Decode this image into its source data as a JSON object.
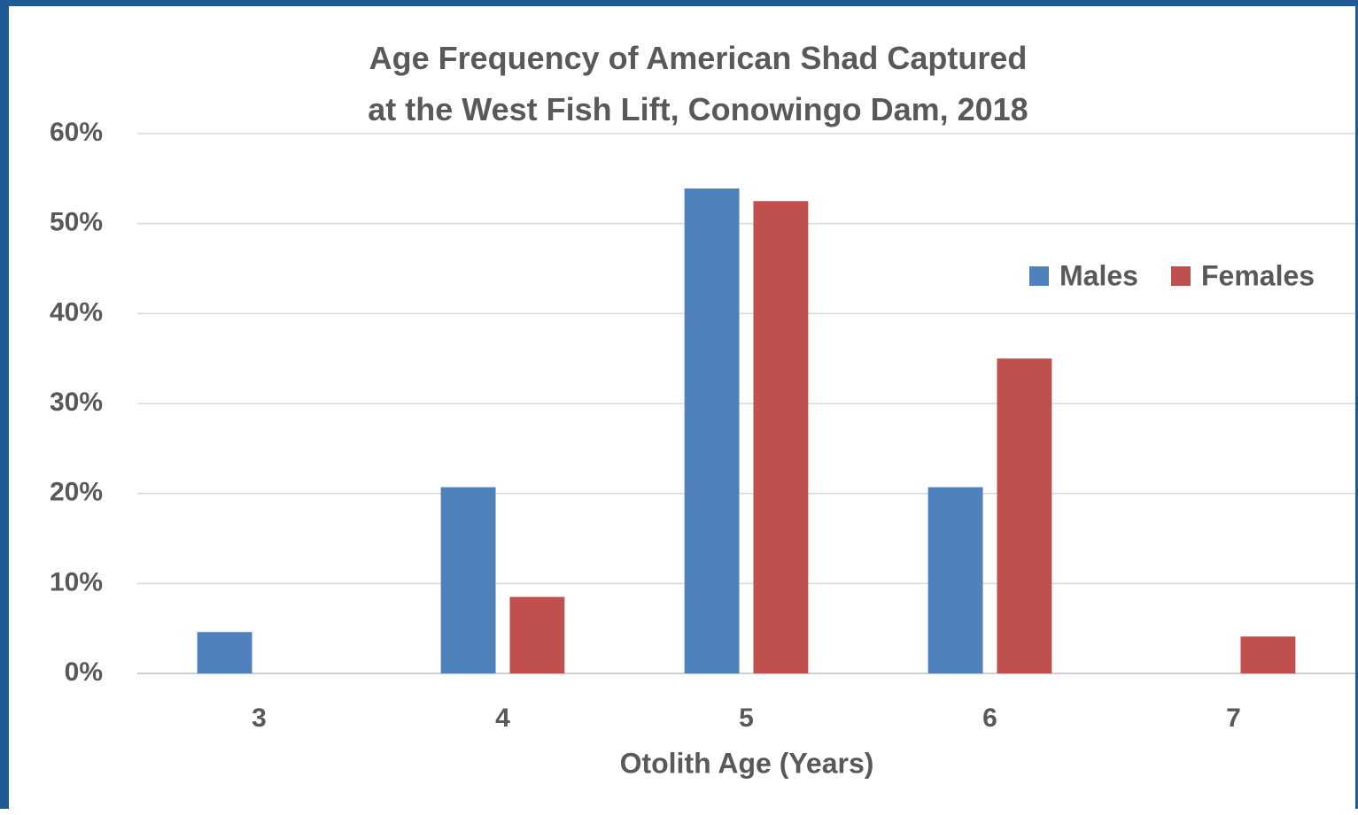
{
  "chart_data": {
    "type": "bar",
    "title": "Age Frequency of American Shad Captured at the West Fish Lift, Conowingo Dam, 2018",
    "x_label": "Otolith Age (Years)",
    "categories": [
      "3",
      "4",
      "5",
      "6",
      "7"
    ],
    "series": [
      {
        "name": "Males",
        "color": "#4f81bd",
        "values": [
          4.6,
          20.7,
          53.9,
          20.7,
          0
        ]
      },
      {
        "name": "Females",
        "color": "#c0504d",
        "values": [
          0,
          8.5,
          52.5,
          35.0,
          4.1
        ]
      }
    ],
    "ylim": [
      0,
      60
    ],
    "yticks": [
      {
        "value": 0,
        "label": "0%"
      },
      {
        "value": 10,
        "label": "10%"
      },
      {
        "value": 20,
        "label": "20%"
      },
      {
        "value": 30,
        "label": "30%"
      },
      {
        "value": 40,
        "label": "40%"
      },
      {
        "value": 50,
        "label": "50%"
      },
      {
        "value": 60,
        "label": "60%"
      }
    ],
    "grid": true,
    "legend": "upper right"
  }
}
